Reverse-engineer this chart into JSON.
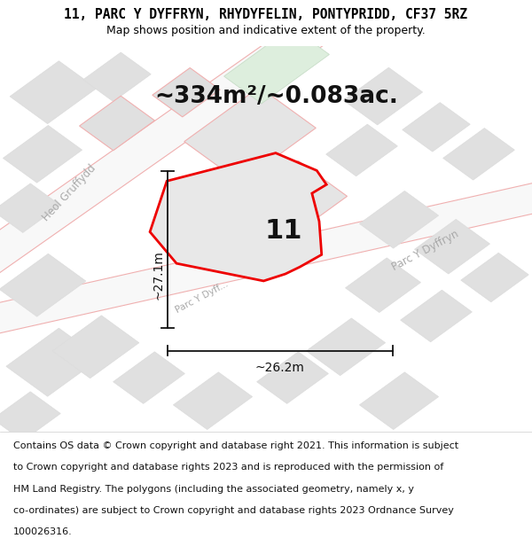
{
  "title_line1": "11, PARC Y DYFFRYN, RHYDYFELIN, PONTYPRIDD, CF37 5RZ",
  "title_line2": "Map shows position and indicative extent of the property.",
  "area_text": "~334m²/~0.083ac.",
  "plot_number": "11",
  "width_label": "~26.2m",
  "height_label": "~27.1m",
  "footer_lines": [
    "Contains OS data © Crown copyright and database right 2021. This information is subject",
    "to Crown copyright and database rights 2023 and is reproduced with the permission of",
    "HM Land Registry. The polygons (including the associated geometry, namely x, y",
    "co-ordinates) are subject to Crown copyright and database rights 2023 Ordnance Survey",
    "100026316."
  ],
  "map_bg": "#f2f2f2",
  "building_fill": "#e0e0e0",
  "building_edge": "#f0b0b0",
  "building_edge_thin": "#dddddd",
  "road_fill": "#ffffff",
  "road_edge": "#f0b0b0",
  "green_fill": "#ddeedd",
  "green_edge": "#c8ddc8",
  "plot_fill": "#e8e8e8",
  "plot_outline": "#ee0000",
  "label_color": "#aaaaaa",
  "dim_color": "#111111",
  "title_fontsize": 10.5,
  "subtitle_fontsize": 9.0,
  "area_fontsize": 19,
  "number_fontsize": 22,
  "dim_fontsize": 10,
  "street_fontsize": 8.5,
  "footer_fontsize": 8.0
}
